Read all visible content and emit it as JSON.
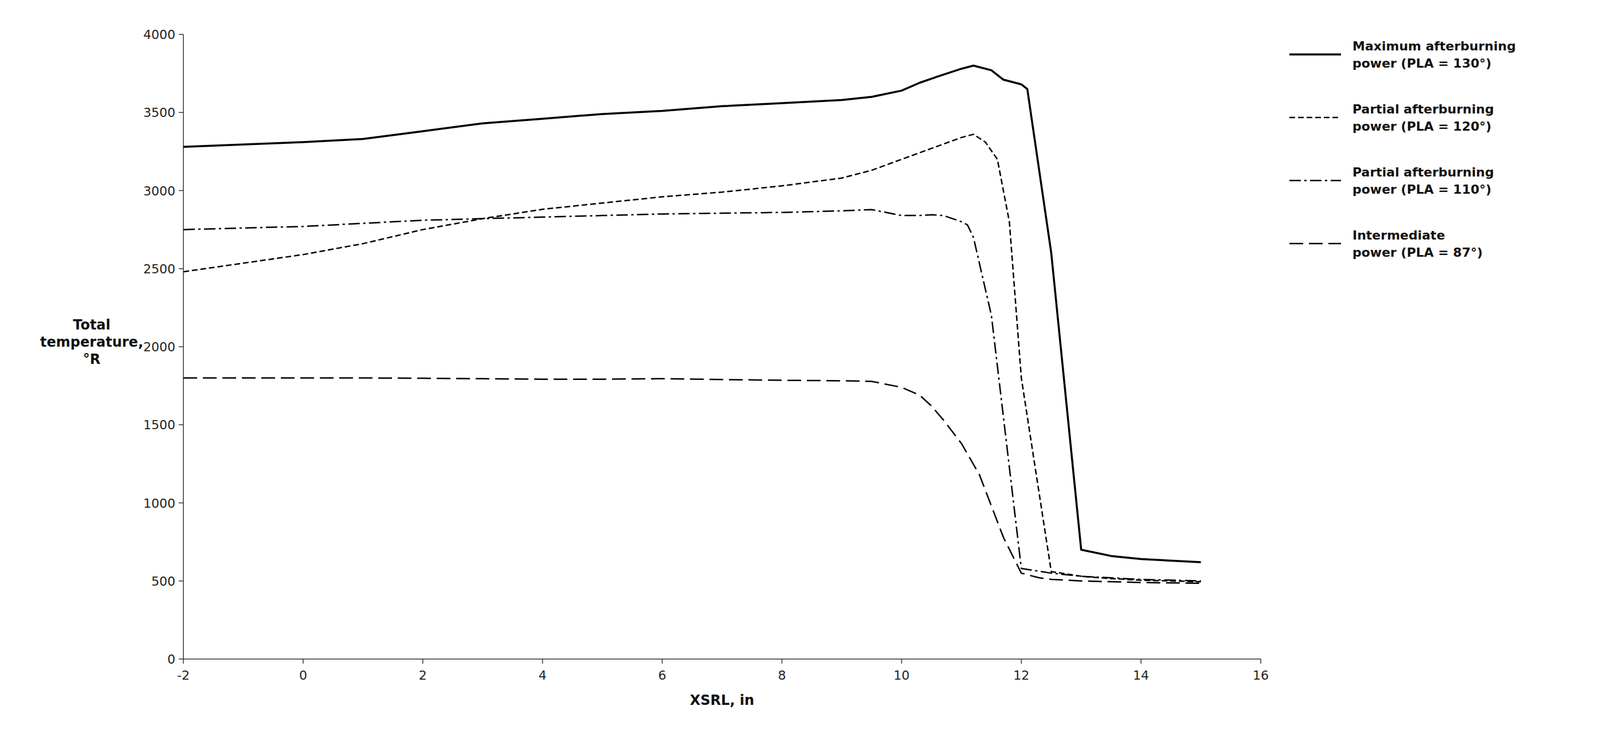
{
  "chart_data": {
    "type": "line",
    "xlabel": "XSRL, in",
    "ylabel": "Total\ntemperature,\n°R",
    "xlim": [
      -2,
      16
    ],
    "ylim": [
      0,
      4000
    ],
    "xticks": [
      -2,
      0,
      2,
      4,
      6,
      8,
      10,
      12,
      14,
      16
    ],
    "yticks": [
      0,
      500,
      1000,
      1500,
      2000,
      2500,
      3000,
      3500,
      4000
    ],
    "grid": false,
    "legend": "right",
    "series": [
      {
        "name": "Maximum afterburning\npower (PLA = 130°)",
        "color": "#000000",
        "line_style": "solid",
        "x": [
          -2,
          0,
          1,
          2,
          3,
          4,
          5,
          6,
          7,
          8,
          9,
          9.5,
          10,
          10.3,
          10.6,
          11,
          11.2,
          11.5,
          11.7,
          12,
          12.1,
          12.5,
          13,
          13.5,
          14,
          15
        ],
        "values": [
          3280,
          3310,
          3330,
          3380,
          3430,
          3460,
          3490,
          3510,
          3540,
          3560,
          3580,
          3600,
          3640,
          3690,
          3730,
          3780,
          3800,
          3770,
          3710,
          3680,
          3650,
          2600,
          700,
          660,
          640,
          620
        ]
      },
      {
        "name": "Partial afterburning\npower (PLA = 120°)",
        "color": "#000000",
        "line_style": "densely-dashed",
        "x": [
          -2,
          0,
          1,
          2,
          3,
          4,
          5,
          6,
          7,
          8,
          9,
          9.5,
          10,
          10.5,
          11,
          11.2,
          11.4,
          11.6,
          11.8,
          12,
          12.5,
          13,
          13.5,
          14,
          15
        ],
        "values": [
          2480,
          2590,
          2660,
          2750,
          2820,
          2880,
          2920,
          2960,
          2990,
          3030,
          3080,
          3130,
          3200,
          3270,
          3340,
          3360,
          3310,
          3200,
          2800,
          1800,
          560,
          530,
          515,
          505,
          495
        ]
      },
      {
        "name": "Partial afterburning\npower (PLA = 110°)",
        "color": "#000000",
        "line_style": "dash-dot",
        "x": [
          -2,
          0,
          1,
          2,
          3,
          4,
          5,
          6,
          7,
          8,
          9,
          9.5,
          10,
          10.3,
          10.5,
          10.7,
          11,
          11.1,
          11.2,
          11.5,
          12,
          12.5,
          13,
          13.5,
          14,
          15
        ],
        "values": [
          2750,
          2770,
          2790,
          2810,
          2820,
          2830,
          2840,
          2850,
          2855,
          2860,
          2870,
          2878,
          2840,
          2840,
          2845,
          2840,
          2800,
          2780,
          2700,
          2200,
          580,
          550,
          530,
          520,
          510,
          500
        ]
      },
      {
        "name": "Intermediate\npower (PLA = 87°)",
        "color": "#000000",
        "line_style": "dashed",
        "x": [
          -2,
          0,
          1,
          2,
          3,
          4,
          5,
          6,
          7,
          8,
          9,
          9.5,
          10,
          10.3,
          10.5,
          10.7,
          11,
          11.3,
          11.5,
          11.7,
          12,
          12.3,
          12.5,
          13,
          13.5,
          14,
          15
        ],
        "values": [
          1800,
          1800,
          1800,
          1798,
          1795,
          1792,
          1792,
          1795,
          1790,
          1785,
          1782,
          1778,
          1740,
          1690,
          1620,
          1530,
          1380,
          1180,
          980,
          780,
          550,
          520,
          510,
          500,
          495,
          490,
          485
        ]
      }
    ]
  }
}
